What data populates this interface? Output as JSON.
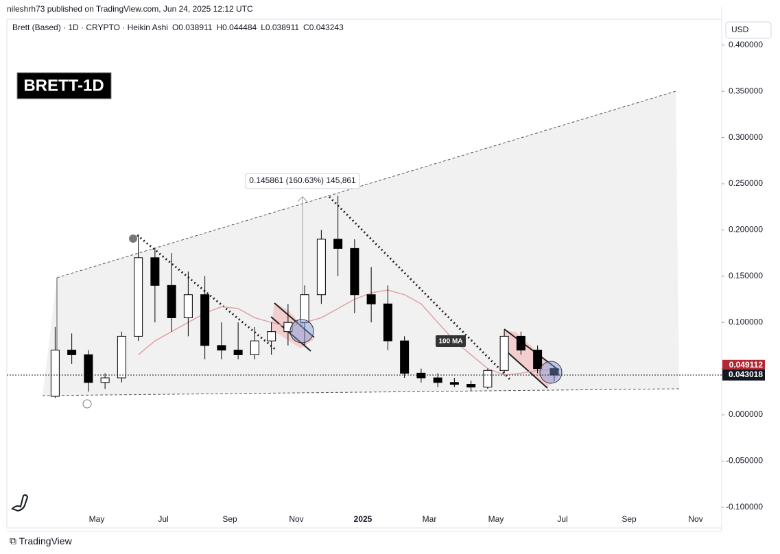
{
  "header": {
    "published": "nileshrh73 published on TradingView.com, Jun 24, 2025 12:12 UTC",
    "symbol": "Brett (Based) · 1D · CRYPTO · Heikin Ashi",
    "ohlc": [
      "O0.038911",
      "H0.044484",
      "L0.038911",
      "C0.043243"
    ],
    "currency": "USD",
    "badge": "BRETT-1D",
    "footer": "TradingView"
  },
  "chart_data": {
    "type": "candlestick",
    "categories": [
      null,
      null,
      null,
      null,
      "May",
      null,
      null,
      null,
      "Jul",
      null,
      null,
      null,
      "Sep",
      null,
      null,
      null,
      "Nov",
      null,
      null,
      null,
      "2025",
      null,
      null,
      null,
      "Mar",
      null,
      null,
      null,
      "May",
      null,
      null,
      null,
      "Jul",
      null,
      null,
      null,
      "Sep",
      null,
      null,
      null,
      "Nov",
      null
    ],
    "open": [
      null,
      0.02,
      0.07,
      0.065,
      0.035,
      0.04,
      0.085,
      0.17,
      0.14,
      0.105,
      0.13,
      0.075,
      0.07,
      0.065,
      0.08,
      0.09,
      0.1,
      0.13,
      0.19,
      0.18,
      0.13,
      0.12,
      0.08,
      0.045,
      0.04,
      0.035,
      0.033,
      0.03,
      0.048,
      0.085,
      0.07,
      0.05,
      null,
      null,
      null,
      null,
      null,
      null,
      null,
      null,
      null,
      null
    ],
    "high": [
      null,
      0.095,
      0.088,
      0.07,
      0.045,
      0.09,
      0.195,
      0.18,
      0.175,
      0.155,
      0.15,
      0.1,
      0.1,
      0.095,
      0.1,
      0.12,
      0.14,
      0.2,
      0.237,
      0.19,
      0.16,
      0.14,
      0.085,
      0.05,
      0.045,
      0.04,
      0.037,
      0.05,
      0.092,
      0.09,
      0.075,
      0.052,
      null,
      null,
      null,
      null,
      null,
      null,
      null,
      null,
      null,
      null
    ],
    "low": [
      null,
      0.018,
      0.055,
      0.025,
      0.028,
      0.035,
      0.08,
      0.1,
      0.09,
      0.085,
      0.06,
      0.06,
      0.06,
      0.06,
      0.065,
      0.075,
      0.075,
      0.12,
      0.15,
      0.11,
      0.1,
      0.07,
      0.04,
      0.035,
      0.03,
      0.03,
      0.026,
      0.028,
      0.045,
      0.065,
      0.045,
      0.036,
      null,
      null,
      null,
      null,
      null,
      null,
      null,
      null,
      null,
      null
    ],
    "close": [
      null,
      0.07,
      0.065,
      0.035,
      0.04,
      0.085,
      0.17,
      0.14,
      0.105,
      0.13,
      0.075,
      0.07,
      0.065,
      0.08,
      0.09,
      0.1,
      0.13,
      0.19,
      0.18,
      0.13,
      0.12,
      0.08,
      0.045,
      0.04,
      0.035,
      0.033,
      0.03,
      0.048,
      0.085,
      0.07,
      0.05,
      0.043,
      null,
      null,
      null,
      null,
      null,
      null,
      null,
      null,
      null,
      null
    ],
    "up_color": "#ffffff",
    "down_color": "#000000",
    "ma": {
      "label": "100 MA",
      "color": "#e0a3a3",
      "values": [
        null,
        null,
        null,
        null,
        null,
        null,
        0.065,
        0.08,
        0.09,
        0.1,
        0.11,
        0.117,
        0.115,
        0.105,
        0.1,
        0.095,
        0.1,
        0.105,
        0.115,
        0.125,
        0.132,
        0.135,
        0.13,
        0.12,
        0.1,
        0.08,
        0.065,
        0.05,
        0.043,
        0.045,
        0.048,
        0.049112,
        null,
        null,
        null,
        null,
        null,
        null,
        null,
        null,
        null,
        null
      ]
    },
    "ylim": [
      -0.1224,
      0.4414
    ],
    "yticks": [
      {
        "value": 0.4,
        "label": "0.400000"
      },
      {
        "value": 0.35,
        "label": "0.350000"
      },
      {
        "value": 0.3,
        "label": "0.300000"
      },
      {
        "value": 0.25,
        "label": "0.250000"
      },
      {
        "value": 0.2,
        "label": "0.200000"
      },
      {
        "value": 0.15,
        "label": "0.150000"
      },
      {
        "value": 0.1,
        "label": "0.100000"
      },
      {
        "value": 0.05,
        "label": "0.050000"
      },
      {
        "value": 0,
        "label": "0.000000"
      },
      {
        "value": -0.05,
        "label": "-0.050000"
      },
      {
        "value": -0.1,
        "label": "-0.100000"
      }
    ],
    "price_tags": [
      {
        "value": 0.049112,
        "color": "#b22833"
      },
      {
        "value": 0.043018,
        "color": "#131722"
      }
    ],
    "measure_label": "0.145861 (160.63%) 145,861"
  }
}
